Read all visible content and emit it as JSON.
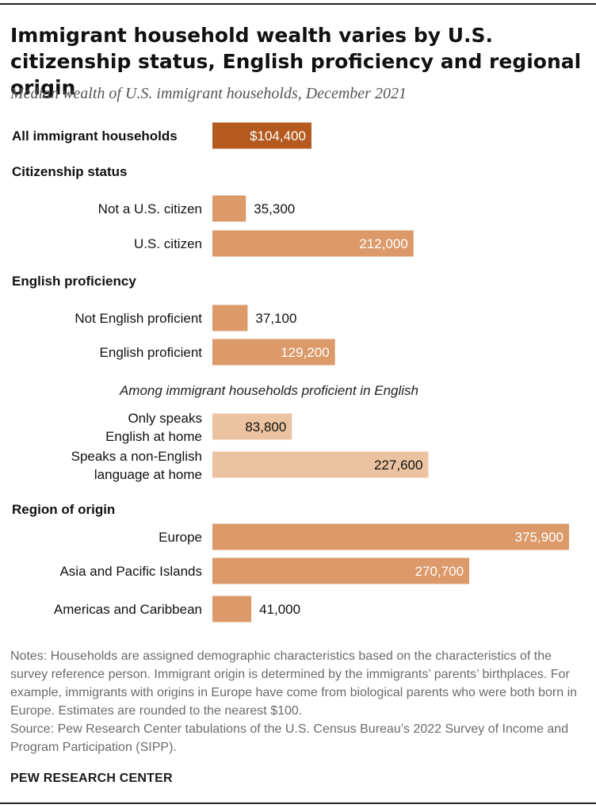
{
  "title": "Immigrant household wealth varies by U.S. citizenship status, English proficiency and regional origin",
  "subtitle": "Median wealth of U.S. immigrant households, December 2021",
  "notes": "Notes: Households are assigned demographic characteristics based on the characteristics of the survey reference person. Immigrant origin is determined by the immigrants’ parents’ birthplaces. For example, immigrants with origins in Europe have come from biological parents who were both born in Europe. Estimates are rounded to the nearest $100.",
  "source": "Source: Pew Research Center tabulations of the U.S. Census Bureau’s 2022 Survey of Income and Program Participation (SIPP).",
  "brand": "PEW RESEARCH CENTER",
  "chart_data": {
    "type": "bar",
    "orientation": "horizontal",
    "colors": {
      "total": "#b45a1e",
      "standard": "#dc9a6a",
      "light": "#ebc3a0"
    },
    "groups": [
      {
        "heading": "",
        "rows": [
          {
            "label": [
              "All immigrant households"
            ],
            "value": 104400,
            "value_label": "$104,400",
            "style": "total"
          }
        ]
      },
      {
        "heading": "Citizenship status",
        "rows": [
          {
            "label": [
              "Not a U.S. citizen"
            ],
            "value": 35300,
            "value_label": "35,300",
            "style": "standard"
          },
          {
            "label": [
              "U.S. citizen"
            ],
            "value": 212000,
            "value_label": "212,000",
            "style": "standard"
          }
        ]
      },
      {
        "heading": "English proficiency",
        "rows": [
          {
            "label": [
              "Not English proficient"
            ],
            "value": 37100,
            "value_label": "37,100",
            "style": "standard"
          },
          {
            "label": [
              "English proficient"
            ],
            "value": 129200,
            "value_label": "129,200",
            "style": "standard"
          }
        ]
      },
      {
        "subheading": "Among immigrant households proficient in English",
        "rows": [
          {
            "label": [
              "Only speaks",
              "English at home"
            ],
            "value": 83800,
            "value_label": "83,800",
            "style": "light"
          },
          {
            "label": [
              "Speaks a non-English",
              "language at home"
            ],
            "value": 227600,
            "value_label": "227,600",
            "style": "light"
          }
        ]
      },
      {
        "heading": "Region of origin",
        "rows": [
          {
            "label": [
              "Europe"
            ],
            "value": 375900,
            "value_label": "375,900",
            "style": "standard"
          },
          {
            "label": [
              "Asia and Pacific Islands"
            ],
            "value": 270700,
            "value_label": "270,700",
            "style": "standard"
          },
          {
            "label": [
              "Americas and Caribbean"
            ],
            "value": 41000,
            "value_label": "41,000",
            "style": "standard"
          }
        ]
      }
    ]
  }
}
